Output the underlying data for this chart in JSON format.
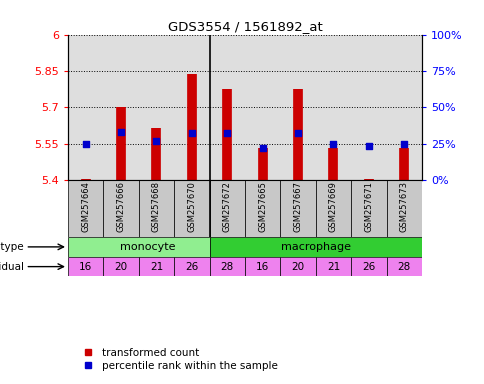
{
  "title": "GDS3554 / 1561892_at",
  "samples": [
    "GSM257664",
    "GSM257666",
    "GSM257668",
    "GSM257670",
    "GSM257672",
    "GSM257665",
    "GSM257667",
    "GSM257669",
    "GSM257671",
    "GSM257673"
  ],
  "transformed_count": [
    5.405,
    5.7,
    5.615,
    5.838,
    5.775,
    5.53,
    5.775,
    5.53,
    5.405,
    5.53
  ],
  "percentile_rank": [
    25,
    33,
    27,
    32,
    32,
    22,
    32,
    25,
    23,
    25
  ],
  "ylim": [
    5.4,
    6.0
  ],
  "yticks": [
    5.4,
    5.55,
    5.7,
    5.85,
    6.0
  ],
  "ytick_labels": [
    "5.4",
    "5.55",
    "5.7",
    "5.85",
    "6"
  ],
  "percentile_yticks": [
    0,
    25,
    50,
    75,
    100
  ],
  "percentile_ylabels": [
    "0%",
    "25%",
    "50%",
    "75%",
    "100%"
  ],
  "cell_types": [
    "monocyte",
    "monocyte",
    "monocyte",
    "monocyte",
    "monocyte",
    "macrophage",
    "macrophage",
    "macrophage",
    "macrophage",
    "macrophage"
  ],
  "individuals": [
    16,
    20,
    21,
    26,
    28,
    16,
    20,
    21,
    26,
    28
  ],
  "cell_type_colors": {
    "monocyte": "#90EE90",
    "macrophage": "#32CD32"
  },
  "individual_color": "#EE82EE",
  "bar_color": "#CC0000",
  "dot_color": "#0000CC",
  "col_bg_color": "#C8C8C8",
  "separator_after": 4
}
